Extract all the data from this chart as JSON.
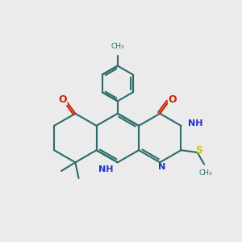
{
  "bg": "#ebebeb",
  "bc": "#2d6b6b",
  "nc": "#1a33cc",
  "oc": "#cc2200",
  "sc": "#cccc00",
  "lw": 1.5,
  "figsize": [
    3.0,
    3.0
  ],
  "dpi": 100,
  "xlim": [
    0,
    10
  ],
  "ylim": [
    0,
    10.5
  ]
}
